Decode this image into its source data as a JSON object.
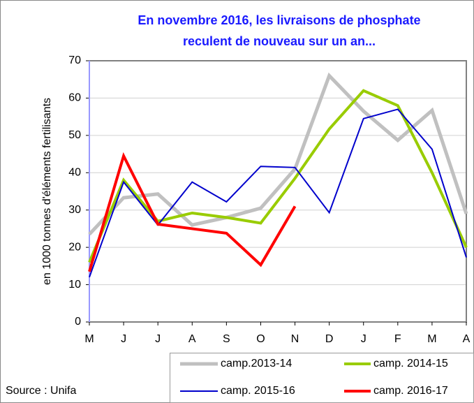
{
  "chart_data": {
    "type": "line",
    "title": "En novembre 2016, les livraisons de phosphate reculent de nouveau sur un an...",
    "y_label": "en 1000 tonnes d'éléments fertilisants",
    "source": "Source : Unifa",
    "categories": [
      "M",
      "J",
      "J",
      "A",
      "S",
      "O",
      "N",
      "D",
      "J",
      "F",
      "M",
      "A"
    ],
    "series": [
      {
        "name": "camp.2013-14",
        "color": "#c0c0c0",
        "values": [
          23.5,
          33.3,
          34.3,
          26,
          28,
          30.5,
          41,
          66,
          56.5,
          48.7,
          56.7,
          29
        ]
      },
      {
        "name": "camp. 2014-15",
        "color": "#99cc00",
        "values": [
          16,
          38,
          27,
          29.2,
          28,
          26.5,
          38.5,
          51.7,
          62,
          58,
          40,
          20
        ]
      },
      {
        "name": "camp. 2015-16",
        "color": "#0000cc",
        "values": [
          12,
          37.5,
          26,
          37.5,
          32.2,
          41.7,
          41.4,
          29.3,
          54.5,
          57,
          46.3,
          17.3
        ]
      },
      {
        "name": "camp. 2016-17",
        "color": "#ff0000",
        "values": [
          13.5,
          44.5,
          26.2,
          25,
          23.8,
          15.3,
          31,
          null,
          null,
          null,
          null,
          null
        ]
      }
    ],
    "ylim": [
      0,
      70
    ],
    "yticks": [
      0,
      10,
      20,
      30,
      40,
      50,
      60,
      70
    ],
    "grid": true
  }
}
